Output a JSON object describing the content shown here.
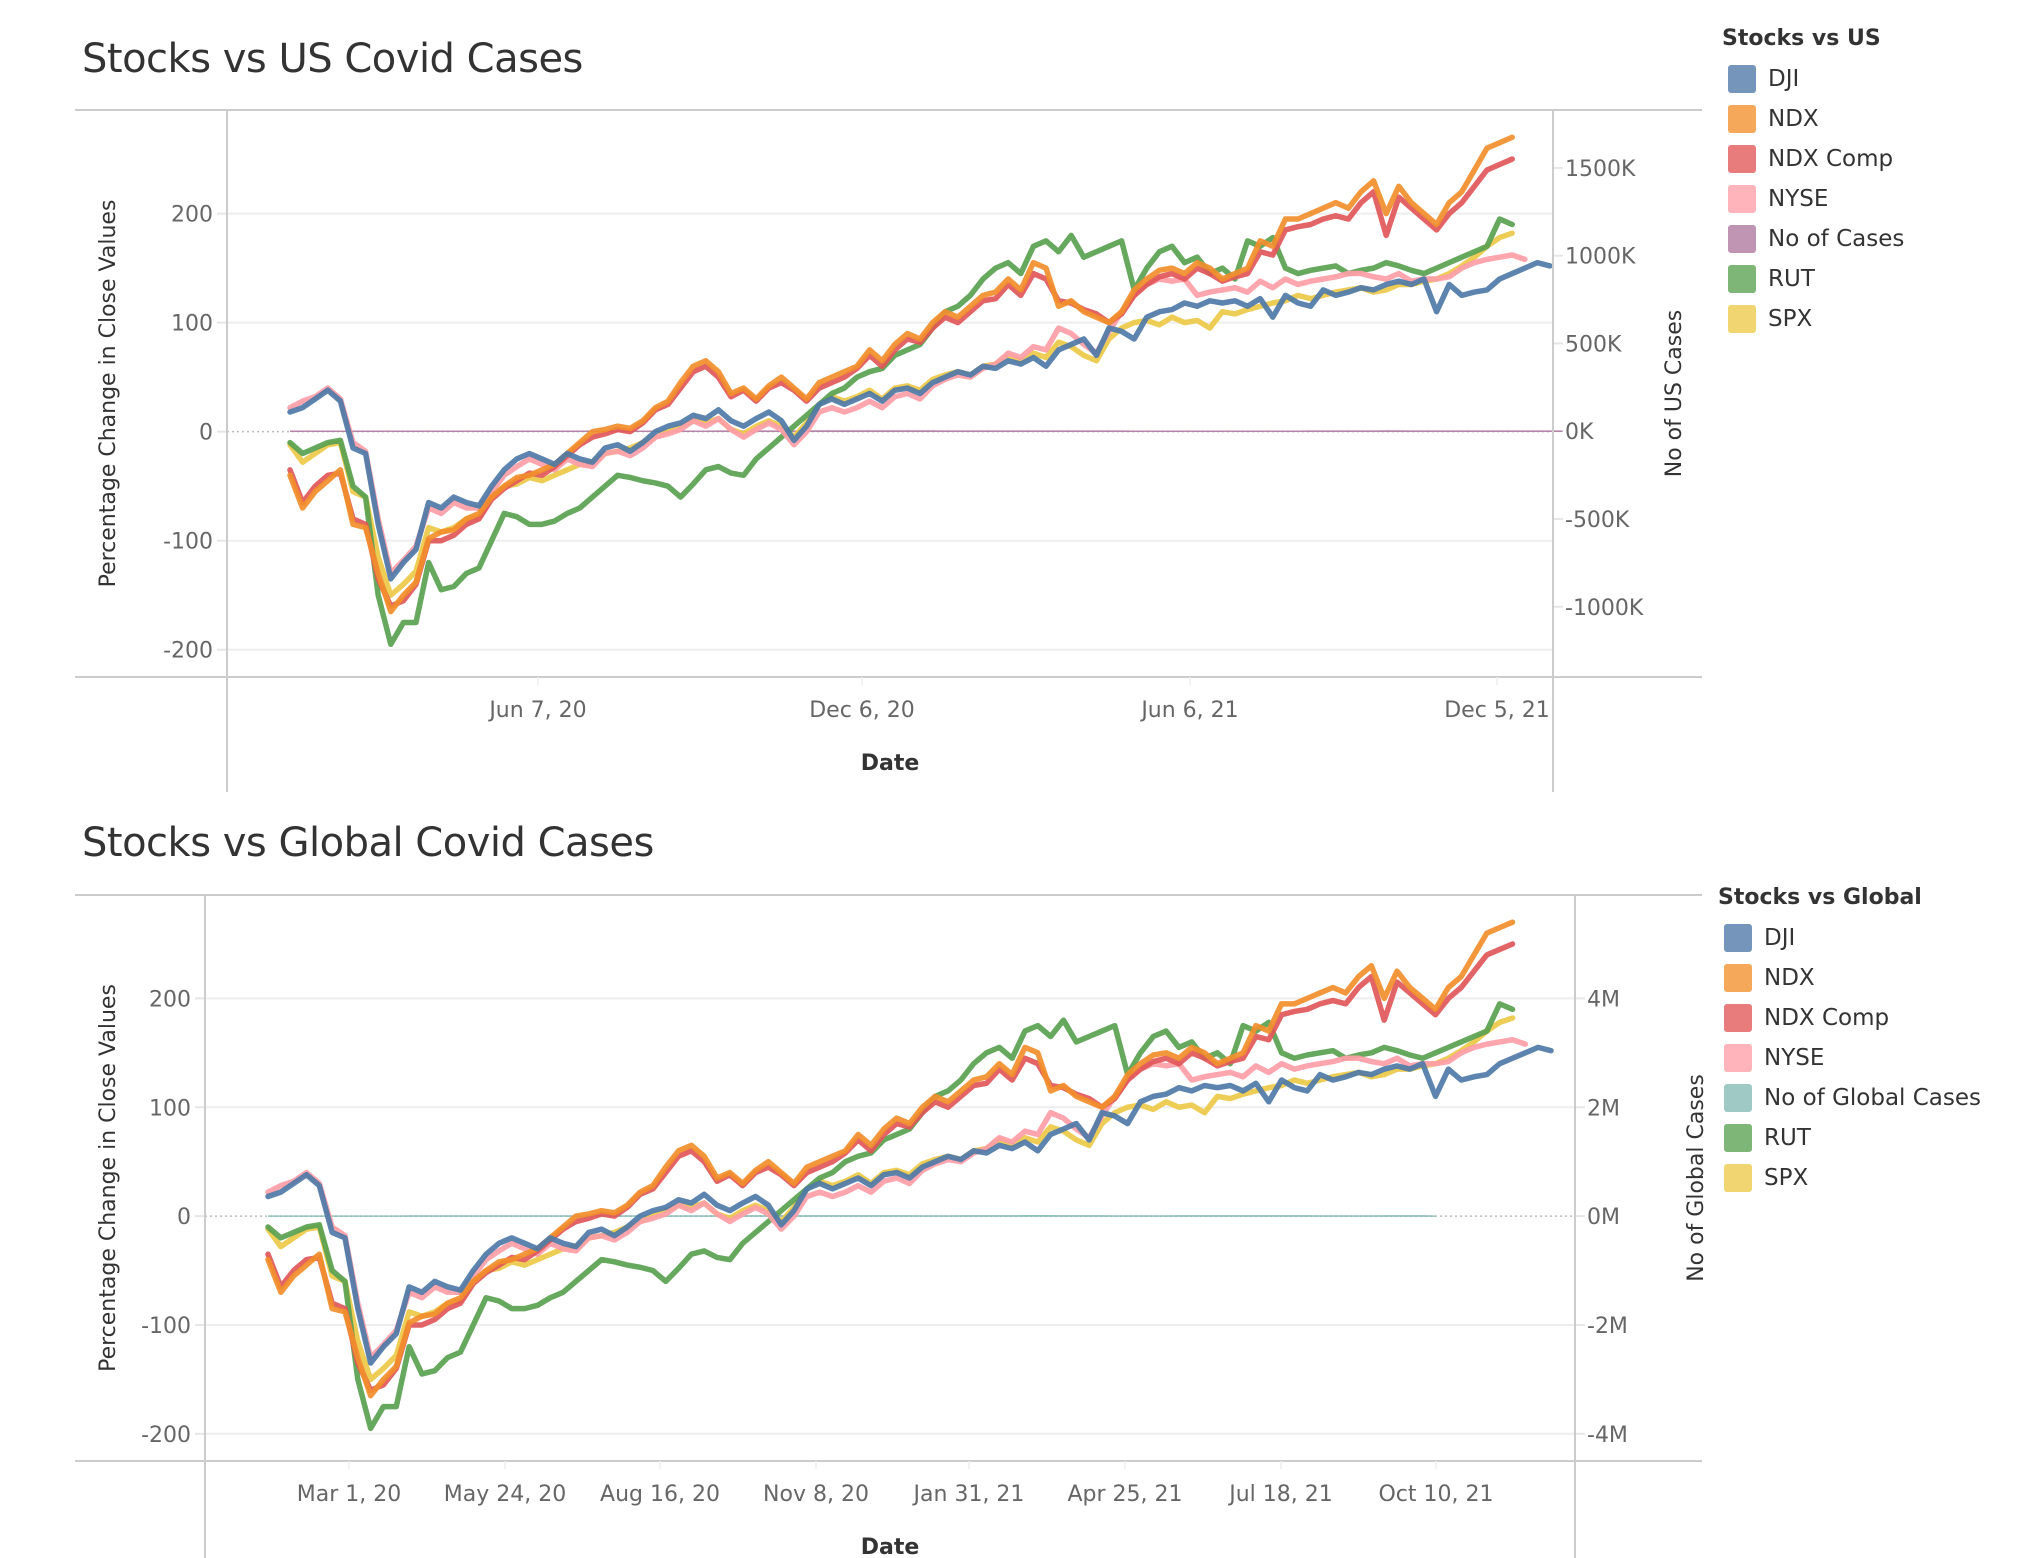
{
  "colors": {
    "DJI": "#4e79a7",
    "NDX": "#f28e2b",
    "NDX Comp": "#e15759",
    "NYSE": "#ff9da7",
    "RUT": "#59a14f",
    "SPX": "#edc948",
    "No of Cases": "#b07aa1",
    "No of Global Cases": "#86bcb6"
  },
  "chart_data": [
    {
      "type": "line",
      "title": "Stocks vs US Covid Cases",
      "xlabel": "Date",
      "ylabel": "Percentage Change in Close Values",
      "y2label": "No of US Cases",
      "x_tick_labels": [
        "Jun 7, 20",
        "Dec 6, 20",
        "Jun 6, 21",
        "Dec 5, 21"
      ],
      "y_tick_labels": [
        "200",
        "100",
        "0",
        "-100",
        "-200"
      ],
      "y2_tick_labels": [
        "1500K",
        "1000K",
        "500K",
        "0K",
        "-500K",
        "-1000K"
      ],
      "ylim": [
        -225,
        295
      ],
      "y2lim": [
        -1400000,
        1830000
      ],
      "grid": true,
      "legend": {
        "title": "Stocks vs US",
        "position": "right",
        "entries": [
          "DJI",
          "NDX",
          "NDX Comp",
          "NYSE",
          "No of Cases",
          "RUT",
          "SPX"
        ]
      },
      "area_series": {
        "name": "No of Cases",
        "axis": "right"
      },
      "x_start": "Jan 19, 20",
      "x_step_weeks": 1
    },
    {
      "type": "line",
      "title": "Stocks vs Global Covid Cases",
      "xlabel": "Date",
      "ylabel": "Percentage Change in Close Values",
      "y2label": "No of Global Cases",
      "x_tick_labels": [
        "Mar 1, 20",
        "May 24, 20",
        "Aug 16, 20",
        "Nov 8, 20",
        "Jan 31, 21",
        "Apr 25, 21",
        "Jul 18, 21",
        "Oct 10, 21"
      ],
      "y_tick_labels": [
        "200",
        "100",
        "0",
        "-100",
        "-200"
      ],
      "y2_tick_labels": [
        "4M",
        "2M",
        "0M",
        "-2M",
        "-4M"
      ],
      "ylim": [
        -225,
        295
      ],
      "y2lim": [
        -4500000,
        5900000
      ],
      "grid": true,
      "legend": {
        "title": "Stocks vs Global",
        "position": "right",
        "entries": [
          "DJI",
          "NDX",
          "NDX Comp",
          "NYSE",
          "No of Global Cases",
          "RUT",
          "SPX"
        ]
      },
      "area_series": {
        "name": "No of Global Cases",
        "axis": "right"
      },
      "x_start": "Jan 19, 20",
      "x_step_weeks": 1
    }
  ],
  "series": {
    "DJI": [
      18,
      22,
      30,
      38,
      28,
      -15,
      -20,
      -85,
      -135,
      -120,
      -108,
      -65,
      -70,
      -60,
      -65,
      -68,
      -50,
      -35,
      -25,
      -20,
      -25,
      -30,
      -20,
      -25,
      -28,
      -15,
      -12,
      -18,
      -10,
      0,
      5,
      8,
      15,
      12,
      20,
      10,
      5,
      12,
      18,
      10,
      -8,
      5,
      25,
      30,
      25,
      30,
      35,
      28,
      38,
      40,
      35,
      45,
      50,
      55,
      52,
      60,
      58,
      65,
      62,
      68,
      60,
      75,
      80,
      85,
      70,
      95,
      92,
      85,
      105,
      110,
      112,
      118,
      115,
      120,
      118,
      120,
      115,
      122,
      105,
      125,
      118,
      115,
      130,
      125,
      128,
      132,
      130,
      135,
      138,
      135,
      140,
      110,
      135,
      125,
      128,
      130,
      140,
      145,
      150,
      155,
      152
    ],
    "NDX": [
      -40,
      -70,
      -55,
      -45,
      -35,
      -85,
      -88,
      -130,
      -165,
      -150,
      -138,
      -98,
      -92,
      -90,
      -80,
      -75,
      -60,
      -50,
      -42,
      -40,
      -35,
      -30,
      -20,
      -10,
      0,
      2,
      5,
      3,
      10,
      22,
      28,
      45,
      60,
      65,
      55,
      35,
      40,
      30,
      42,
      50,
      40,
      30,
      45,
      50,
      55,
      60,
      75,
      65,
      80,
      90,
      85,
      100,
      110,
      105,
      115,
      125,
      128,
      140,
      130,
      155,
      150,
      115,
      120,
      110,
      105,
      100,
      110,
      130,
      140,
      148,
      150,
      145,
      155,
      150,
      140,
      145,
      150,
      175,
      170,
      195,
      195,
      200,
      205,
      210,
      205,
      220,
      230,
      200,
      225,
      210,
      200,
      190,
      210,
      220,
      240,
      260,
      265,
      270
    ],
    "NDX Comp": [
      -35,
      -65,
      -50,
      -40,
      -38,
      -80,
      -85,
      -135,
      -160,
      -155,
      -140,
      -100,
      -100,
      -95,
      -85,
      -80,
      -62,
      -52,
      -45,
      -38,
      -40,
      -32,
      -22,
      -12,
      -5,
      -2,
      2,
      0,
      8,
      20,
      25,
      40,
      55,
      60,
      50,
      32,
      38,
      28,
      40,
      45,
      38,
      28,
      40,
      45,
      50,
      58,
      70,
      60,
      75,
      85,
      82,
      95,
      105,
      100,
      110,
      120,
      122,
      135,
      125,
      145,
      140,
      120,
      118,
      112,
      108,
      100,
      108,
      125,
      135,
      142,
      145,
      140,
      150,
      145,
      138,
      142,
      145,
      165,
      162,
      185,
      188,
      190,
      195,
      198,
      195,
      210,
      220,
      180,
      215,
      205,
      195,
      185,
      200,
      210,
      225,
      240,
      245,
      250
    ],
    "NYSE": [
      22,
      28,
      32,
      40,
      30,
      -10,
      -18,
      -80,
      -130,
      -118,
      -105,
      -70,
      -75,
      -65,
      -70,
      -70,
      -55,
      -40,
      -32,
      -25,
      -30,
      -35,
      -25,
      -30,
      -32,
      -20,
      -18,
      -22,
      -15,
      -5,
      -2,
      2,
      10,
      5,
      12,
      2,
      -5,
      2,
      8,
      2,
      -12,
      0,
      18,
      22,
      18,
      22,
      28,
      22,
      32,
      35,
      30,
      42,
      48,
      52,
      50,
      58,
      62,
      72,
      68,
      78,
      75,
      95,
      90,
      80,
      72,
      92,
      110,
      125,
      135,
      140,
      138,
      140,
      125,
      128,
      130,
      132,
      128,
      138,
      132,
      140,
      135,
      138,
      140,
      142,
      145,
      145,
      142,
      140,
      145,
      138,
      140,
      140,
      142,
      150,
      155,
      158,
      160,
      162,
      158
    ],
    "RUT": [
      -10,
      -20,
      -15,
      -10,
      -8,
      -50,
      -60,
      -150,
      -195,
      -175,
      -175,
      -120,
      -145,
      -142,
      -130,
      -125,
      -100,
      -75,
      -78,
      -85,
      -85,
      -82,
      -75,
      -70,
      -60,
      -50,
      -40,
      -42,
      -45,
      -47,
      -50,
      -60,
      -48,
      -35,
      -32,
      -38,
      -40,
      -25,
      -15,
      -5,
      5,
      15,
      25,
      35,
      40,
      50,
      55,
      58,
      70,
      75,
      80,
      95,
      110,
      115,
      125,
      140,
      150,
      155,
      145,
      170,
      175,
      165,
      180,
      160,
      165,
      170,
      175,
      130,
      150,
      165,
      170,
      155,
      160,
      145,
      150,
      140,
      175,
      170,
      178,
      150,
      145,
      148,
      150,
      152,
      145,
      148,
      150,
      155,
      152,
      148,
      145,
      150,
      155,
      160,
      165,
      170,
      195,
      190
    ],
    "SPX": [
      -12,
      -28,
      -20,
      -12,
      -10,
      -55,
      -60,
      -115,
      -150,
      -140,
      -128,
      -88,
      -92,
      -88,
      -80,
      -78,
      -60,
      -50,
      -48,
      -42,
      -45,
      -40,
      -35,
      -30,
      -28,
      -20,
      -18,
      -15,
      -10,
      -5,
      0,
      5,
      10,
      8,
      12,
      2,
      -2,
      5,
      10,
      5,
      -5,
      8,
      25,
      32,
      28,
      32,
      38,
      30,
      40,
      42,
      38,
      48,
      52,
      55,
      52,
      60,
      62,
      70,
      65,
      72,
      68,
      82,
      78,
      70,
      65,
      85,
      95,
      100,
      102,
      98,
      105,
      100,
      102,
      95,
      110,
      108,
      112,
      115,
      118,
      120,
      125,
      122,
      125,
      128,
      130,
      132,
      128,
      130,
      135,
      135,
      138,
      140,
      145,
      152,
      160,
      170,
      178,
      182
    ],
    "No of Cases": [
      0,
      0,
      0,
      0,
      0,
      0,
      2,
      15,
      80,
      150,
      180,
      170,
      165,
      160,
      150,
      148,
      145,
      140,
      140,
      150,
      175,
      220,
      270,
      300,
      310,
      300,
      280,
      270,
      260,
      255,
      250,
      250,
      255,
      280,
      330,
      380,
      420,
      500,
      600,
      700,
      850,
      1000,
      1150,
      1250,
      1300,
      1280,
      1400,
      1500,
      1450,
      1650,
      1500,
      1200,
      950,
      700,
      520,
      450,
      420,
      400,
      380,
      370,
      380,
      400,
      420,
      430,
      420,
      400,
      350,
      300,
      250,
      200,
      150,
      100,
      80,
      70,
      60,
      50,
      40,
      45,
      60,
      100,
      200,
      350,
      500,
      700,
      850,
      950,
      1000,
      1050,
      1050,
      1000,
      900,
      800,
      700,
      620,
      560,
      520,
      500,
      520,
      560,
      600,
      650,
      0
    ],
    "No of Global Cases": [
      0,
      0,
      0,
      0,
      0,
      10,
      60,
      300,
      500,
      550,
      600,
      620,
      650,
      700,
      780,
      820,
      900,
      1000,
      1150,
      1300,
      1450,
      1600,
      1720,
      1750,
      1760,
      1780,
      1790,
      1760,
      1800,
      1850,
      1870,
      1900,
      2000,
      2200,
      2600,
      3000,
      3400,
      3800,
      4000,
      4050,
      4100,
      4200,
      4900,
      4300,
      4000,
      4100,
      4800,
      4500,
      4000,
      3500,
      3000,
      2700,
      2600,
      2700,
      3000,
      3400,
      3800,
      4200,
      4900,
      5600,
      5650,
      5500,
      5000,
      4400,
      3800,
      3200,
      2900,
      2600,
      2500,
      2600,
      2800,
      3100,
      3500,
      3900,
      4150,
      4250,
      4300,
      4250,
      4000,
      3700,
      3400,
      3100,
      2900,
      2750,
      2700,
      2750,
      2900,
      3100,
      3200,
      3400,
      3600,
      0
    ]
  }
}
